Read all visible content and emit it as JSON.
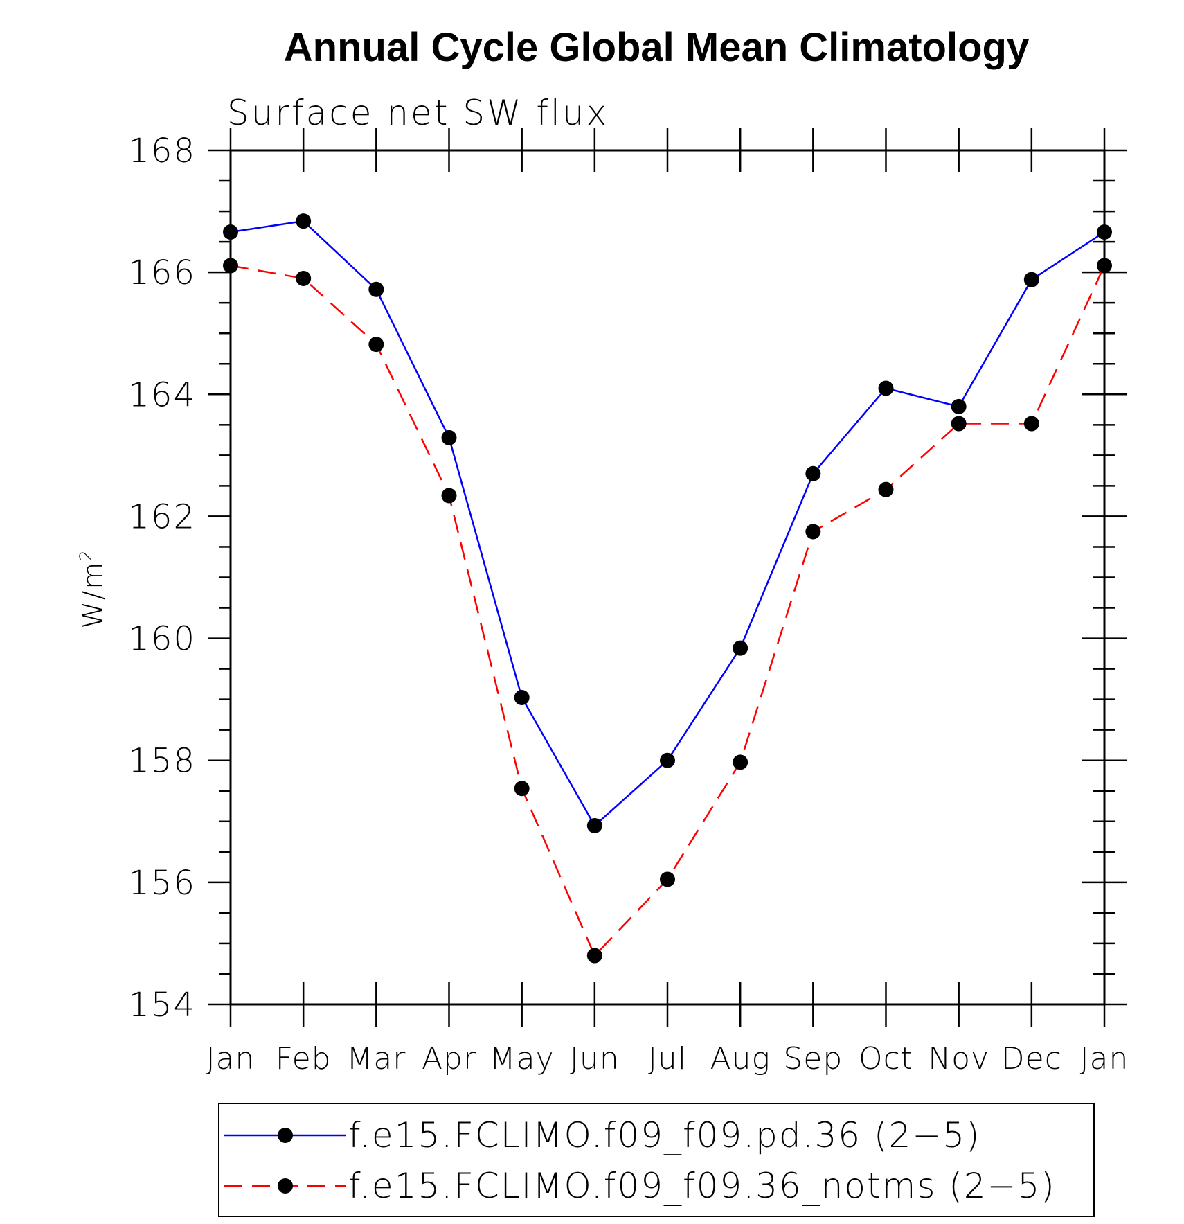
{
  "chart_data": {
    "type": "line",
    "title": "Annual Cycle Global Mean Climatology",
    "subtitle": "Surface net SW flux",
    "ylabel": "W/m",
    "ylabel_superscript": "2",
    "xlabel": "",
    "categories": [
      "Jan",
      "Feb",
      "Mar",
      "Apr",
      "May",
      "Jun",
      "Jul",
      "Aug",
      "Sep",
      "Oct",
      "Nov",
      "Dec",
      "Jan"
    ],
    "ylim": [
      154,
      168
    ],
    "yticks": [
      154,
      156,
      158,
      160,
      162,
      164,
      166,
      168
    ],
    "yminor_step": 0.5,
    "grid": false,
    "legend_position": "bottom",
    "series": [
      {
        "name": "f.e15.FCLIMO.f09_f09.pd.36 (2−5)",
        "color": "#0000ff",
        "dash": "solid",
        "marker": "filled-circle",
        "values": [
          166.66,
          166.84,
          165.72,
          163.29,
          159.03,
          156.93,
          158.0,
          159.84,
          162.7,
          164.1,
          163.8,
          165.88,
          166.66
        ]
      },
      {
        "name": "f.e15.FCLIMO.f09_f09.36_notms (2−5)",
        "color": "#ff0000",
        "dash": "dashed",
        "marker": "filled-circle",
        "values": [
          166.11,
          165.9,
          164.82,
          162.34,
          157.54,
          154.8,
          156.05,
          157.97,
          161.75,
          162.44,
          163.52,
          163.52,
          166.11
        ]
      }
    ]
  }
}
